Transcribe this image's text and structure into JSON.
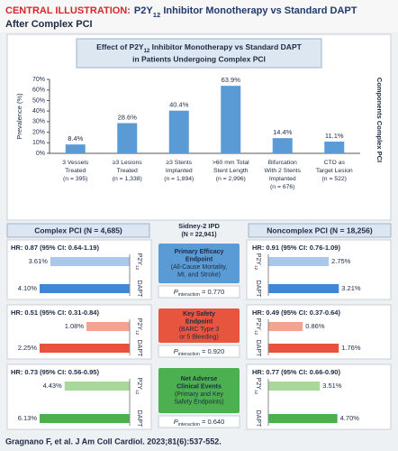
{
  "header": {
    "label": "CENTRAL ILLUSTRATION:",
    "title": [
      "P2Y",
      "12",
      " Inhibitor Monotherapy vs Standard DAPT"
    ],
    "title2": "After Complex PCI"
  },
  "chart_data": [
    {
      "type": "bar",
      "title": [
        "Effect of P2Y",
        "12",
        " Inhibitor Monotherapy vs Standard DAPT"
      ],
      "title2": "in Patients Undergoing Complex PCI",
      "y_label": "Prevalence (%)",
      "right_label": "Components Complex PCI",
      "categories": [
        [
          "3 Vessels",
          "Treated",
          "(n = 395)"
        ],
        [
          "≥3 Lesions",
          "Treated",
          "(n = 1,338)"
        ],
        [
          "≥3 Stents",
          "Implanted",
          "(n = 1,894)"
        ],
        [
          ">60 mm Total",
          "Stent Length",
          "(n = 2,996)"
        ],
        [
          "Bifurcation",
          "With 2 Stents",
          "Implanted",
          "(n = 676)"
        ],
        [
          "CTO as",
          "Target Lesion",
          "(n = 522)"
        ]
      ],
      "values": [
        8.4,
        28.6,
        40.4,
        63.9,
        14.4,
        11.1
      ],
      "value_labels": [
        "8.4%",
        "28.6%",
        "40.4%",
        "63.9%",
        "14.4%",
        "11.1%"
      ],
      "color": "#5b9bd5",
      "ylim": [
        0,
        70
      ],
      "yticks": [
        {
          "value": 0,
          "label": "0%"
        },
        {
          "value": 10,
          "label": "10%"
        },
        {
          "value": 20,
          "label": "20%"
        },
        {
          "value": 30,
          "label": "30%"
        },
        {
          "value": 40,
          "label": "40%"
        },
        {
          "value": 50,
          "label": "50%"
        },
        {
          "value": 60,
          "label": "60%"
        },
        {
          "value": 70,
          "label": "70%"
        }
      ]
    },
    {
      "type": "mirror-bar",
      "title": [
        "Primary Efficacy",
        "Endpoint",
        "(All-Cause Mortality,",
        "MI, and Stroke)"
      ],
      "box_color": "#5b9bd5",
      "p": [
        "P",
        "interaction",
        " = 0.770"
      ],
      "hr": [
        "HR: 0.87 (95% CI: 0.64-1.19)",
        "HR: 0.91 (95% CI: 0.76-1.09)"
      ],
      "series": [
        {
          "name": [
            "P2Y",
            "12"
          ],
          "color": "#a9c8ea",
          "values": [
            3.61,
            2.75
          ],
          "value_labels": [
            "3.61%",
            "2.75%"
          ]
        },
        {
          "name": "DAPT",
          "color": "#3f87d6",
          "values": [
            4.1,
            3.21
          ],
          "value_labels": [
            "4.10%",
            "3.21%"
          ]
        }
      ]
    },
    {
      "type": "mirror-bar",
      "title": [
        "Key Safety",
        "Endpoint",
        "(BARC Type 3",
        "or 5 Bleeding)"
      ],
      "box_color": "#e8553e",
      "p": [
        "P",
        "interaction",
        " = 0.920"
      ],
      "hr": [
        "HR: 0.51 (95% CI: 0.31-0.84)",
        "HR: 0.49 (95% CI: 0.37-0.64)"
      ],
      "series": [
        {
          "name": [
            "P2Y",
            "12"
          ],
          "color": "#f2a48f",
          "values": [
            1.08,
            0.86
          ],
          "value_labels": [
            "1.08%",
            "0.86%"
          ]
        },
        {
          "name": "DAPT",
          "color": "#e8523a",
          "values": [
            2.25,
            1.76
          ],
          "value_labels": [
            "2.25%",
            "1.76%"
          ]
        }
      ]
    },
    {
      "type": "mirror-bar",
      "title": [
        "Net Adverse",
        "Clinical Events",
        "(Primary and Key",
        "Safety Endpoints)"
      ],
      "box_color": "#4caf50",
      "p": [
        "P",
        "interaction",
        " = 0.640"
      ],
      "hr": [
        "HR: 0.73 (95% CI: 0.56-0.95)",
        "HR: 0.77 (95% CI: 0.66-0.90)"
      ],
      "series": [
        {
          "name": [
            "P2Y",
            "12"
          ],
          "color": "#a8d89a",
          "values": [
            4.43,
            3.51
          ],
          "value_labels": [
            "4.43%",
            "3.51%"
          ]
        },
        {
          "name": "DAPT",
          "color": "#4caf50",
          "values": [
            6.13,
            4.7
          ],
          "value_labels": [
            "6.13%",
            "4.70%"
          ]
        }
      ]
    }
  ],
  "study": {
    "name": "Sidney-2 IPD",
    "n": "(N = 22,941)"
  },
  "groups": [
    "Complex PCI (N = 4,685)",
    "Noncomplex PCI (N = 18,256)"
  ],
  "footer": "Gragnano F, et al. J Am Coll Cardiol. 2023;81(6):537-552."
}
